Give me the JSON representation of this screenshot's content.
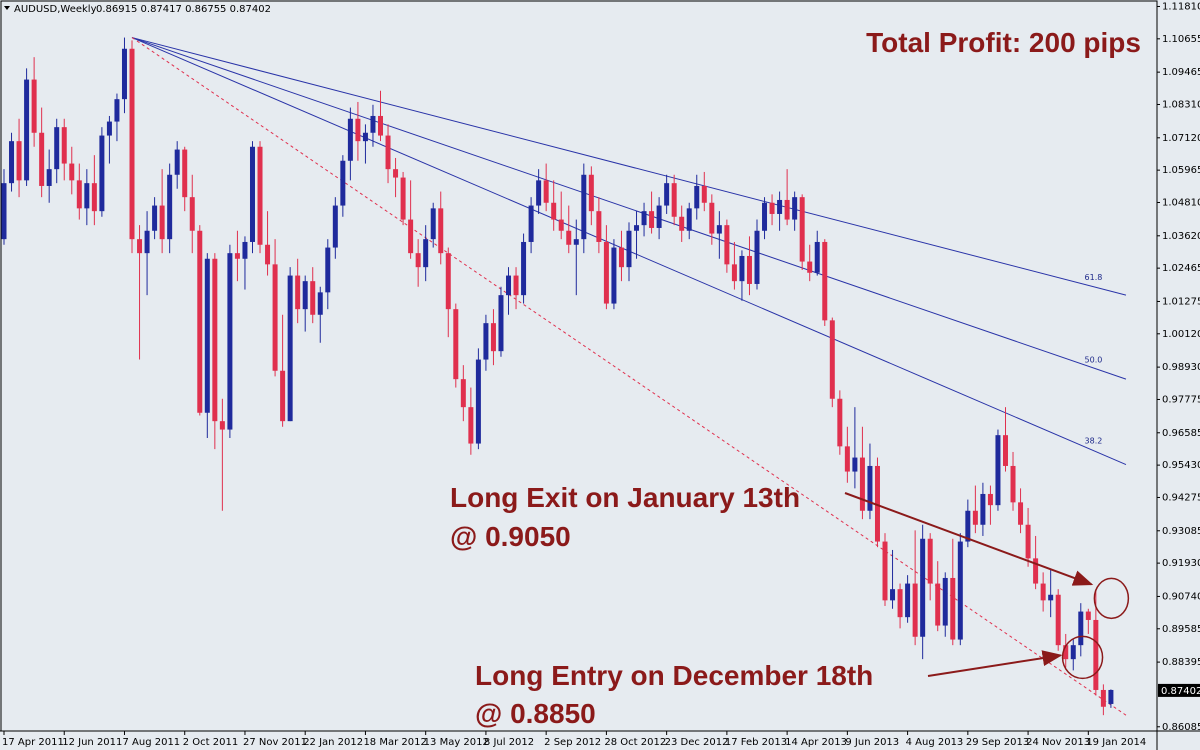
{
  "header": {
    "symbol": "AUDUSD,Weekly",
    "quote": "0.86915 0.87417 0.86755 0.87402"
  },
  "title": "Total Profit: 200 pips",
  "annotations": {
    "exit_line1": "Long Exit on January 13th",
    "exit_line2": "@ 0.9050",
    "entry_line1": "Long Entry on December 18th",
    "entry_line2": "@ 0.8850"
  },
  "fib_labels": [
    "61.8",
    "50.0",
    "38.2"
  ],
  "current_price": "0.87402",
  "colors": {
    "background": "#e6ebf0",
    "bull": "#1f2a9c",
    "bear": "#e0304e",
    "trend": "#2a34a8",
    "annotation": "#8b1a1a",
    "price_tag": "#000000"
  },
  "chart_data": {
    "type": "candlestick",
    "instrument": "AUDUSD",
    "timeframe": "Weekly",
    "ylim": [
      0.8597,
      1.1197
    ],
    "y_ticks": [
      "1.11810",
      "1.10655",
      "1.09465",
      "1.08310",
      "1.07120",
      "1.05965",
      "1.04810",
      "1.03620",
      "1.02465",
      "1.01275",
      "1.00120",
      "0.98930",
      "0.97775",
      "0.96585",
      "0.95430",
      "0.94275",
      "0.93085",
      "0.91930",
      "0.90740",
      "0.89585",
      "0.88395",
      "0.87402",
      "0.86085"
    ],
    "x_ticks": [
      "17 Apr 2011",
      "12 Jun 2011",
      "7 Aug 2011",
      "2 Oct 2011",
      "27 Nov 2011",
      "22 Jan 2012",
      "18 Mar 2012",
      "13 May 2012",
      "8 Jul 2012",
      "2 Sep 2012",
      "28 Oct 2012",
      "23 Dec 2012",
      "17 Feb 2013",
      "14 Apr 2013",
      "9 Jun 2013",
      "4 Aug 2013",
      "29 Sep 2013",
      "24 Nov 2013",
      "19 Jan 2014"
    ],
    "weeks": 149,
    "week_of_first_tick": 0,
    "weeks_between_ticks": 8,
    "candles": [
      {
        "o": 1.035,
        "h": 1.06,
        "l": 1.033,
        "c": 1.055
      },
      {
        "o": 1.055,
        "h": 1.073,
        "l": 1.052,
        "c": 1.07
      },
      {
        "o": 1.07,
        "h": 1.078,
        "l": 1.05,
        "c": 1.056
      },
      {
        "o": 1.056,
        "h": 1.096,
        "l": 1.054,
        "c": 1.092
      },
      {
        "o": 1.092,
        "h": 1.1,
        "l": 1.068,
        "c": 1.073
      },
      {
        "o": 1.073,
        "h": 1.082,
        "l": 1.05,
        "c": 1.054
      },
      {
        "o": 1.054,
        "h": 1.067,
        "l": 1.048,
        "c": 1.06
      },
      {
        "o": 1.06,
        "h": 1.078,
        "l": 1.055,
        "c": 1.075
      },
      {
        "o": 1.075,
        "h": 1.078,
        "l": 1.056,
        "c": 1.062
      },
      {
        "o": 1.062,
        "h": 1.068,
        "l": 1.051,
        "c": 1.056
      },
      {
        "o": 1.056,
        "h": 1.062,
        "l": 1.042,
        "c": 1.046
      },
      {
        "o": 1.046,
        "h": 1.06,
        "l": 1.04,
        "c": 1.055
      },
      {
        "o": 1.055,
        "h": 1.065,
        "l": 1.04,
        "c": 1.045
      },
      {
        "o": 1.045,
        "h": 1.075,
        "l": 1.043,
        "c": 1.072
      },
      {
        "o": 1.072,
        "h": 1.079,
        "l": 1.062,
        "c": 1.077
      },
      {
        "o": 1.077,
        "h": 1.087,
        "l": 1.07,
        "c": 1.085
      },
      {
        "o": 1.085,
        "h": 1.107,
        "l": 1.08,
        "c": 1.103
      },
      {
        "o": 1.103,
        "h": 1.106,
        "l": 1.03,
        "c": 1.035
      },
      {
        "o": 1.035,
        "h": 1.04,
        "l": 0.992,
        "c": 1.03
      },
      {
        "o": 1.03,
        "h": 1.045,
        "l": 1.015,
        "c": 1.038
      },
      {
        "o": 1.038,
        "h": 1.05,
        "l": 1.035,
        "c": 1.047
      },
      {
        "o": 1.047,
        "h": 1.06,
        "l": 1.03,
        "c": 1.035
      },
      {
        "o": 1.035,
        "h": 1.062,
        "l": 1.03,
        "c": 1.058
      },
      {
        "o": 1.058,
        "h": 1.07,
        "l": 1.053,
        "c": 1.067
      },
      {
        "o": 1.067,
        "h": 1.068,
        "l": 1.045,
        "c": 1.05
      },
      {
        "o": 1.05,
        "h": 1.058,
        "l": 1.03,
        "c": 1.038
      },
      {
        "o": 1.038,
        "h": 1.04,
        "l": 0.972,
        "c": 0.973
      },
      {
        "o": 0.973,
        "h": 1.03,
        "l": 0.964,
        "c": 1.028
      },
      {
        "o": 1.028,
        "h": 1.03,
        "l": 0.96,
        "c": 0.97
      },
      {
        "o": 0.97,
        "h": 0.978,
        "l": 0.938,
        "c": 0.967
      },
      {
        "o": 0.967,
        "h": 1.033,
        "l": 0.964,
        "c": 1.03
      },
      {
        "o": 1.03,
        "h": 1.038,
        "l": 1.02,
        "c": 1.028
      },
      {
        "o": 1.028,
        "h": 1.036,
        "l": 1.017,
        "c": 1.034
      },
      {
        "o": 1.034,
        "h": 1.07,
        "l": 1.03,
        "c": 1.068
      },
      {
        "o": 1.068,
        "h": 1.07,
        "l": 1.03,
        "c": 1.033
      },
      {
        "o": 1.033,
        "h": 1.045,
        "l": 1.022,
        "c": 1.026
      },
      {
        "o": 1.026,
        "h": 1.035,
        "l": 0.986,
        "c": 0.988
      },
      {
        "o": 0.988,
        "h": 1.008,
        "l": 0.968,
        "c": 0.97
      },
      {
        "o": 0.97,
        "h": 1.025,
        "l": 0.97,
        "c": 1.022
      },
      {
        "o": 1.022,
        "h": 1.028,
        "l": 1.005,
        "c": 1.01
      },
      {
        "o": 1.01,
        "h": 1.022,
        "l": 1.002,
        "c": 1.02
      },
      {
        "o": 1.02,
        "h": 1.025,
        "l": 1.005,
        "c": 1.008
      },
      {
        "o": 1.008,
        "h": 1.018,
        "l": 0.998,
        "c": 1.016
      },
      {
        "o": 1.016,
        "h": 1.035,
        "l": 1.01,
        "c": 1.032
      },
      {
        "o": 1.032,
        "h": 1.05,
        "l": 1.028,
        "c": 1.047
      },
      {
        "o": 1.047,
        "h": 1.065,
        "l": 1.043,
        "c": 1.063
      },
      {
        "o": 1.063,
        "h": 1.082,
        "l": 1.056,
        "c": 1.078
      },
      {
        "o": 1.078,
        "h": 1.084,
        "l": 1.063,
        "c": 1.07
      },
      {
        "o": 1.07,
        "h": 1.076,
        "l": 1.062,
        "c": 1.073
      },
      {
        "o": 1.073,
        "h": 1.083,
        "l": 1.068,
        "c": 1.079
      },
      {
        "o": 1.079,
        "h": 1.088,
        "l": 1.07,
        "c": 1.072
      },
      {
        "o": 1.072,
        "h": 1.076,
        "l": 1.055,
        "c": 1.06
      },
      {
        "o": 1.06,
        "h": 1.064,
        "l": 1.05,
        "c": 1.057
      },
      {
        "o": 1.057,
        "h": 1.059,
        "l": 1.04,
        "c": 1.042
      },
      {
        "o": 1.042,
        "h": 1.056,
        "l": 1.028,
        "c": 1.03
      },
      {
        "o": 1.03,
        "h": 1.035,
        "l": 1.018,
        "c": 1.025
      },
      {
        "o": 1.025,
        "h": 1.04,
        "l": 1.02,
        "c": 1.035
      },
      {
        "o": 1.035,
        "h": 1.048,
        "l": 1.032,
        "c": 1.046
      },
      {
        "o": 1.046,
        "h": 1.052,
        "l": 1.026,
        "c": 1.03
      },
      {
        "o": 1.03,
        "h": 1.032,
        "l": 1.0,
        "c": 1.01
      },
      {
        "o": 1.01,
        "h": 1.012,
        "l": 0.982,
        "c": 0.985
      },
      {
        "o": 0.985,
        "h": 0.99,
        "l": 0.97,
        "c": 0.975
      },
      {
        "o": 0.975,
        "h": 0.982,
        "l": 0.958,
        "c": 0.962
      },
      {
        "o": 0.962,
        "h": 0.996,
        "l": 0.96,
        "c": 0.992
      },
      {
        "o": 0.992,
        "h": 1.008,
        "l": 0.988,
        "c": 1.005
      },
      {
        "o": 1.005,
        "h": 1.01,
        "l": 0.99,
        "c": 0.995
      },
      {
        "o": 0.995,
        "h": 1.018,
        "l": 0.993,
        "c": 1.015
      },
      {
        "o": 1.015,
        "h": 1.025,
        "l": 1.008,
        "c": 1.022
      },
      {
        "o": 1.022,
        "h": 1.025,
        "l": 1.01,
        "c": 1.015
      },
      {
        "o": 1.015,
        "h": 1.037,
        "l": 1.012,
        "c": 1.034
      },
      {
        "o": 1.034,
        "h": 1.05,
        "l": 1.03,
        "c": 1.047
      },
      {
        "o": 1.047,
        "h": 1.06,
        "l": 1.044,
        "c": 1.056
      },
      {
        "o": 1.056,
        "h": 1.062,
        "l": 1.045,
        "c": 1.048
      },
      {
        "o": 1.048,
        "h": 1.056,
        "l": 1.038,
        "c": 1.042
      },
      {
        "o": 1.042,
        "h": 1.052,
        "l": 1.035,
        "c": 1.038
      },
      {
        "o": 1.038,
        "h": 1.047,
        "l": 1.03,
        "c": 1.033
      },
      {
        "o": 1.033,
        "h": 1.042,
        "l": 1.015,
        "c": 1.035
      },
      {
        "o": 1.035,
        "h": 1.062,
        "l": 1.03,
        "c": 1.058
      },
      {
        "o": 1.058,
        "h": 1.061,
        "l": 1.04,
        "c": 1.045
      },
      {
        "o": 1.045,
        "h": 1.05,
        "l": 1.03,
        "c": 1.034
      },
      {
        "o": 1.034,
        "h": 1.04,
        "l": 1.01,
        "c": 1.012
      },
      {
        "o": 1.012,
        "h": 1.035,
        "l": 1.01,
        "c": 1.032
      },
      {
        "o": 1.032,
        "h": 1.038,
        "l": 1.02,
        "c": 1.025
      },
      {
        "o": 1.025,
        "h": 1.041,
        "l": 1.02,
        "c": 1.038
      },
      {
        "o": 1.038,
        "h": 1.045,
        "l": 1.028,
        "c": 1.04
      },
      {
        "o": 1.04,
        "h": 1.048,
        "l": 1.036,
        "c": 1.045
      },
      {
        "o": 1.045,
        "h": 1.052,
        "l": 1.037,
        "c": 1.039
      },
      {
        "o": 1.039,
        "h": 1.05,
        "l": 1.035,
        "c": 1.047
      },
      {
        "o": 1.047,
        "h": 1.058,
        "l": 1.044,
        "c": 1.055
      },
      {
        "o": 1.055,
        "h": 1.058,
        "l": 1.04,
        "c": 1.043
      },
      {
        "o": 1.043,
        "h": 1.047,
        "l": 1.034,
        "c": 1.038
      },
      {
        "o": 1.038,
        "h": 1.048,
        "l": 1.035,
        "c": 1.046
      },
      {
        "o": 1.046,
        "h": 1.058,
        "l": 1.042,
        "c": 1.054
      },
      {
        "o": 1.054,
        "h": 1.059,
        "l": 1.045,
        "c": 1.048
      },
      {
        "o": 1.048,
        "h": 1.051,
        "l": 1.033,
        "c": 1.037
      },
      {
        "o": 1.037,
        "h": 1.045,
        "l": 1.028,
        "c": 1.04
      },
      {
        "o": 1.04,
        "h": 1.042,
        "l": 1.023,
        "c": 1.026
      },
      {
        "o": 1.026,
        "h": 1.034,
        "l": 1.017,
        "c": 1.02
      },
      {
        "o": 1.02,
        "h": 1.031,
        "l": 1.013,
        "c": 1.029
      },
      {
        "o": 1.029,
        "h": 1.036,
        "l": 1.015,
        "c": 1.019
      },
      {
        "o": 1.019,
        "h": 1.042,
        "l": 1.017,
        "c": 1.038
      },
      {
        "o": 1.038,
        "h": 1.05,
        "l": 1.035,
        "c": 1.048
      },
      {
        "o": 1.048,
        "h": 1.051,
        "l": 1.04,
        "c": 1.044
      },
      {
        "o": 1.044,
        "h": 1.052,
        "l": 1.038,
        "c": 1.049
      },
      {
        "o": 1.049,
        "h": 1.06,
        "l": 1.04,
        "c": 1.042
      },
      {
        "o": 1.042,
        "h": 1.052,
        "l": 1.038,
        "c": 1.05
      },
      {
        "o": 1.05,
        "h": 1.051,
        "l": 1.024,
        "c": 1.027
      },
      {
        "o": 1.027,
        "h": 1.033,
        "l": 1.02,
        "c": 1.023
      },
      {
        "o": 1.023,
        "h": 1.038,
        "l": 1.022,
        "c": 1.034
      },
      {
        "o": 1.034,
        "h": 1.035,
        "l": 1.004,
        "c": 1.006
      },
      {
        "o": 1.006,
        "h": 1.007,
        "l": 0.975,
        "c": 0.978
      },
      {
        "o": 0.978,
        "h": 0.981,
        "l": 0.958,
        "c": 0.961
      },
      {
        "o": 0.961,
        "h": 0.968,
        "l": 0.948,
        "c": 0.952
      },
      {
        "o": 0.952,
        "h": 0.975,
        "l": 0.946,
        "c": 0.957
      },
      {
        "o": 0.957,
        "h": 0.968,
        "l": 0.935,
        "c": 0.938
      },
      {
        "o": 0.938,
        "h": 0.962,
        "l": 0.935,
        "c": 0.954
      },
      {
        "o": 0.954,
        "h": 0.957,
        "l": 0.925,
        "c": 0.927
      },
      {
        "o": 0.927,
        "h": 0.93,
        "l": 0.904,
        "c": 0.906
      },
      {
        "o": 0.906,
        "h": 0.924,
        "l": 0.903,
        "c": 0.91
      },
      {
        "o": 0.91,
        "h": 0.912,
        "l": 0.896,
        "c": 0.9
      },
      {
        "o": 0.9,
        "h": 0.915,
        "l": 0.898,
        "c": 0.912
      },
      {
        "o": 0.912,
        "h": 0.931,
        "l": 0.89,
        "c": 0.893
      },
      {
        "o": 0.893,
        "h": 0.933,
        "l": 0.885,
        "c": 0.928
      },
      {
        "o": 0.928,
        "h": 0.93,
        "l": 0.906,
        "c": 0.912
      },
      {
        "o": 0.912,
        "h": 0.92,
        "l": 0.895,
        "c": 0.897
      },
      {
        "o": 0.897,
        "h": 0.916,
        "l": 0.893,
        "c": 0.914
      },
      {
        "o": 0.914,
        "h": 0.928,
        "l": 0.89,
        "c": 0.892
      },
      {
        "o": 0.892,
        "h": 0.93,
        "l": 0.89,
        "c": 0.927
      },
      {
        "o": 0.927,
        "h": 0.942,
        "l": 0.925,
        "c": 0.938
      },
      {
        "o": 0.938,
        "h": 0.947,
        "l": 0.93,
        "c": 0.933
      },
      {
        "o": 0.933,
        "h": 0.948,
        "l": 0.929,
        "c": 0.944
      },
      {
        "o": 0.944,
        "h": 0.947,
        "l": 0.933,
        "c": 0.94
      },
      {
        "o": 0.94,
        "h": 0.967,
        "l": 0.938,
        "c": 0.965
      },
      {
        "o": 0.965,
        "h": 0.975,
        "l": 0.952,
        "c": 0.954
      },
      {
        "o": 0.954,
        "h": 0.959,
        "l": 0.938,
        "c": 0.941
      },
      {
        "o": 0.941,
        "h": 0.946,
        "l": 0.93,
        "c": 0.933
      },
      {
        "o": 0.933,
        "h": 0.939,
        "l": 0.918,
        "c": 0.921
      },
      {
        "o": 0.921,
        "h": 0.929,
        "l": 0.91,
        "c": 0.912
      },
      {
        "o": 0.912,
        "h": 0.916,
        "l": 0.902,
        "c": 0.906
      },
      {
        "o": 0.906,
        "h": 0.917,
        "l": 0.9,
        "c": 0.908
      },
      {
        "o": 0.908,
        "h": 0.91,
        "l": 0.888,
        "c": 0.89
      },
      {
        "o": 0.89,
        "h": 0.894,
        "l": 0.882,
        "c": 0.885
      },
      {
        "o": 0.885,
        "h": 0.892,
        "l": 0.881,
        "c": 0.89
      },
      {
        "o": 0.89,
        "h": 0.905,
        "l": 0.886,
        "c": 0.902
      },
      {
        "o": 0.902,
        "h": 0.903,
        "l": 0.894,
        "c": 0.899
      },
      {
        "o": 0.899,
        "h": 0.91,
        "l": 0.872,
        "c": 0.874
      },
      {
        "o": 0.874,
        "h": 0.876,
        "l": 0.865,
        "c": 0.868
      },
      {
        "o": 0.869,
        "h": 0.8742,
        "l": 0.8676,
        "c": 0.874
      }
    ],
    "trendlines": [
      {
        "week": 17,
        "price": 1.107,
        "to_week": 149,
        "to_price": 1.015
      },
      {
        "week": 17,
        "price": 1.107,
        "to_week": 149,
        "to_price": 0.985
      },
      {
        "week": 17,
        "price": 1.107,
        "to_week": 149,
        "to_price": 0.9545
      },
      {
        "week": 17,
        "price": 1.107,
        "to_week": 149,
        "to_price": 0.865,
        "style": "dashed"
      }
    ],
    "fib_levels": [
      {
        "label": "61.8",
        "week": 143.5,
        "price": 1.0205
      },
      {
        "label": "50.0",
        "week": 143.5,
        "price": 0.991
      },
      {
        "label": "38.2",
        "week": 143.5,
        "price": 0.962
      }
    ],
    "markers": [
      {
        "name": "exit",
        "week": 146,
        "price": 0.906
      },
      {
        "name": "entry",
        "week": 143.5,
        "price": 0.886
      }
    ],
    "grid": false,
    "legend": "none"
  }
}
